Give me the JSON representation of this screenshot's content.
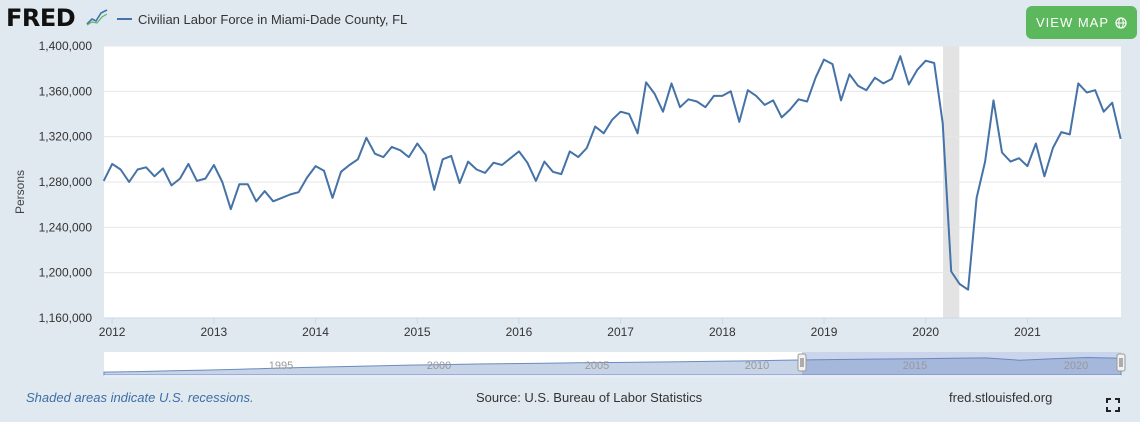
{
  "header": {
    "logo_text": "FRED",
    "legend_label": "Civilian Labor Force in Miami-Dade County, FL",
    "view_map_label": "VIEW MAP"
  },
  "footer": {
    "recession_note": "Shaded areas indicate U.S. recessions.",
    "source": "Source: U.S. Bureau of Labor Statistics",
    "site": "fred.stlouisfed.org"
  },
  "colors": {
    "series": "#4572a7",
    "view_map_button": "#5cb85c",
    "recession_band": "#e3e3e3",
    "page_background": "#e1e9f0"
  },
  "chart_data": {
    "type": "line",
    "title": "Civilian Labor Force in Miami-Dade County, FL",
    "ylabel": "Persons",
    "xlabel": "",
    "ylim": [
      1160000,
      1400000
    ],
    "yticks": [
      1160000,
      1200000,
      1240000,
      1280000,
      1320000,
      1360000,
      1400000
    ],
    "ytick_labels": [
      "1,160,000",
      "1,200,000",
      "1,240,000",
      "1,280,000",
      "1,320,000",
      "1,360,000",
      "1,400,000"
    ],
    "xlim": [
      2011.92,
      2021.92
    ],
    "xticks": [
      2012,
      2013,
      2014,
      2015,
      2016,
      2017,
      2018,
      2019,
      2020,
      2021
    ],
    "xtick_labels": [
      "2012",
      "2013",
      "2014",
      "2015",
      "2016",
      "2017",
      "2018",
      "2019",
      "2020",
      "2021"
    ],
    "grid": true,
    "recession": [
      2020.17,
      2020.33
    ],
    "series": [
      {
        "name": "Civilian Labor Force in Miami-Dade County, FL",
        "start": 2011.917,
        "step": 0.08333,
        "values": [
          1281000,
          1296000,
          1291000,
          1280000,
          1291000,
          1293000,
          1285000,
          1292000,
          1277000,
          1283000,
          1296000,
          1281000,
          1283000,
          1295000,
          1280000,
          1256000,
          1278000,
          1278000,
          1263000,
          1272000,
          1263000,
          1266000,
          1269000,
          1271000,
          1284000,
          1294000,
          1290000,
          1266000,
          1289000,
          1295000,
          1300000,
          1319000,
          1305000,
          1302000,
          1311000,
          1308000,
          1302000,
          1314000,
          1304000,
          1273000,
          1300000,
          1303000,
          1279000,
          1298000,
          1291000,
          1288000,
          1297000,
          1295000,
          1301000,
          1307000,
          1297000,
          1281000,
          1298000,
          1289000,
          1287000,
          1307000,
          1302000,
          1310000,
          1329000,
          1323000,
          1335000,
          1342000,
          1340000,
          1323000,
          1368000,
          1358000,
          1342000,
          1367000,
          1346000,
          1353000,
          1351000,
          1346000,
          1356000,
          1356000,
          1360000,
          1333000,
          1361000,
          1356000,
          1348000,
          1352000,
          1337000,
          1344000,
          1353000,
          1351000,
          1372000,
          1388000,
          1384000,
          1352000,
          1375000,
          1365000,
          1361000,
          1372000,
          1367000,
          1371000,
          1391000,
          1366000,
          1379000,
          1387000,
          1385000,
          1332000,
          1201000,
          1190000,
          1185000,
          1266000,
          1298000,
          1352000,
          1306000,
          1298000,
          1301000,
          1294000,
          1314000,
          1285000,
          1310000,
          1324000,
          1322000,
          1367000,
          1359000,
          1361000,
          1342000,
          1350000,
          1318000
        ]
      }
    ],
    "navigator": {
      "tick_labels": [
        "1995",
        "2000",
        "2005",
        "2010",
        "2015",
        "2020"
      ]
    }
  }
}
